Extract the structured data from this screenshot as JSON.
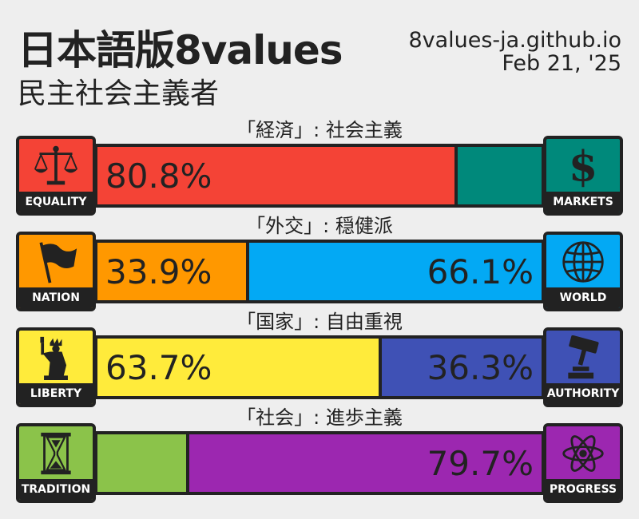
{
  "header": {
    "title": "日本語版8values",
    "ideology": "民主社会主義者",
    "site": "8values-ja.github.io",
    "date": "Feb 21, '25"
  },
  "axes": [
    {
      "label": "「経済」: 社会主義",
      "left": {
        "name": "EQUALITY",
        "icon": "scales-icon",
        "color": "#f44336",
        "percent": 80.8,
        "percent_text": "80.8%"
      },
      "right": {
        "name": "MARKETS",
        "icon": "dollar-icon",
        "color": "#00897b",
        "percent": 19.2,
        "percent_text": ""
      }
    },
    {
      "label": "「外交」: 穏健派",
      "left": {
        "name": "NATION",
        "icon": "flag-icon",
        "color": "#ff9800",
        "percent": 33.9,
        "percent_text": "33.9%"
      },
      "right": {
        "name": "WORLD",
        "icon": "globe-icon",
        "color": "#03a9f4",
        "percent": 66.1,
        "percent_text": "66.1%"
      }
    },
    {
      "label": "「国家」: 自由重視",
      "left": {
        "name": "LIBERTY",
        "icon": "statue-icon",
        "color": "#ffeb3b",
        "percent": 63.7,
        "percent_text": "63.7%"
      },
      "right": {
        "name": "AUTHORITY",
        "icon": "gavel-icon",
        "color": "#3f51b5",
        "percent": 36.3,
        "percent_text": "36.3%"
      }
    },
    {
      "label": "「社会」: 進歩主義",
      "left": {
        "name": "TRADITION",
        "icon": "hourglass-icon",
        "color": "#8bc34a",
        "percent": 20.3,
        "percent_text": ""
      },
      "right": {
        "name": "PROGRESS",
        "icon": "atom-icon",
        "color": "#9c27b0",
        "percent": 79.7,
        "percent_text": "79.7%"
      }
    }
  ]
}
